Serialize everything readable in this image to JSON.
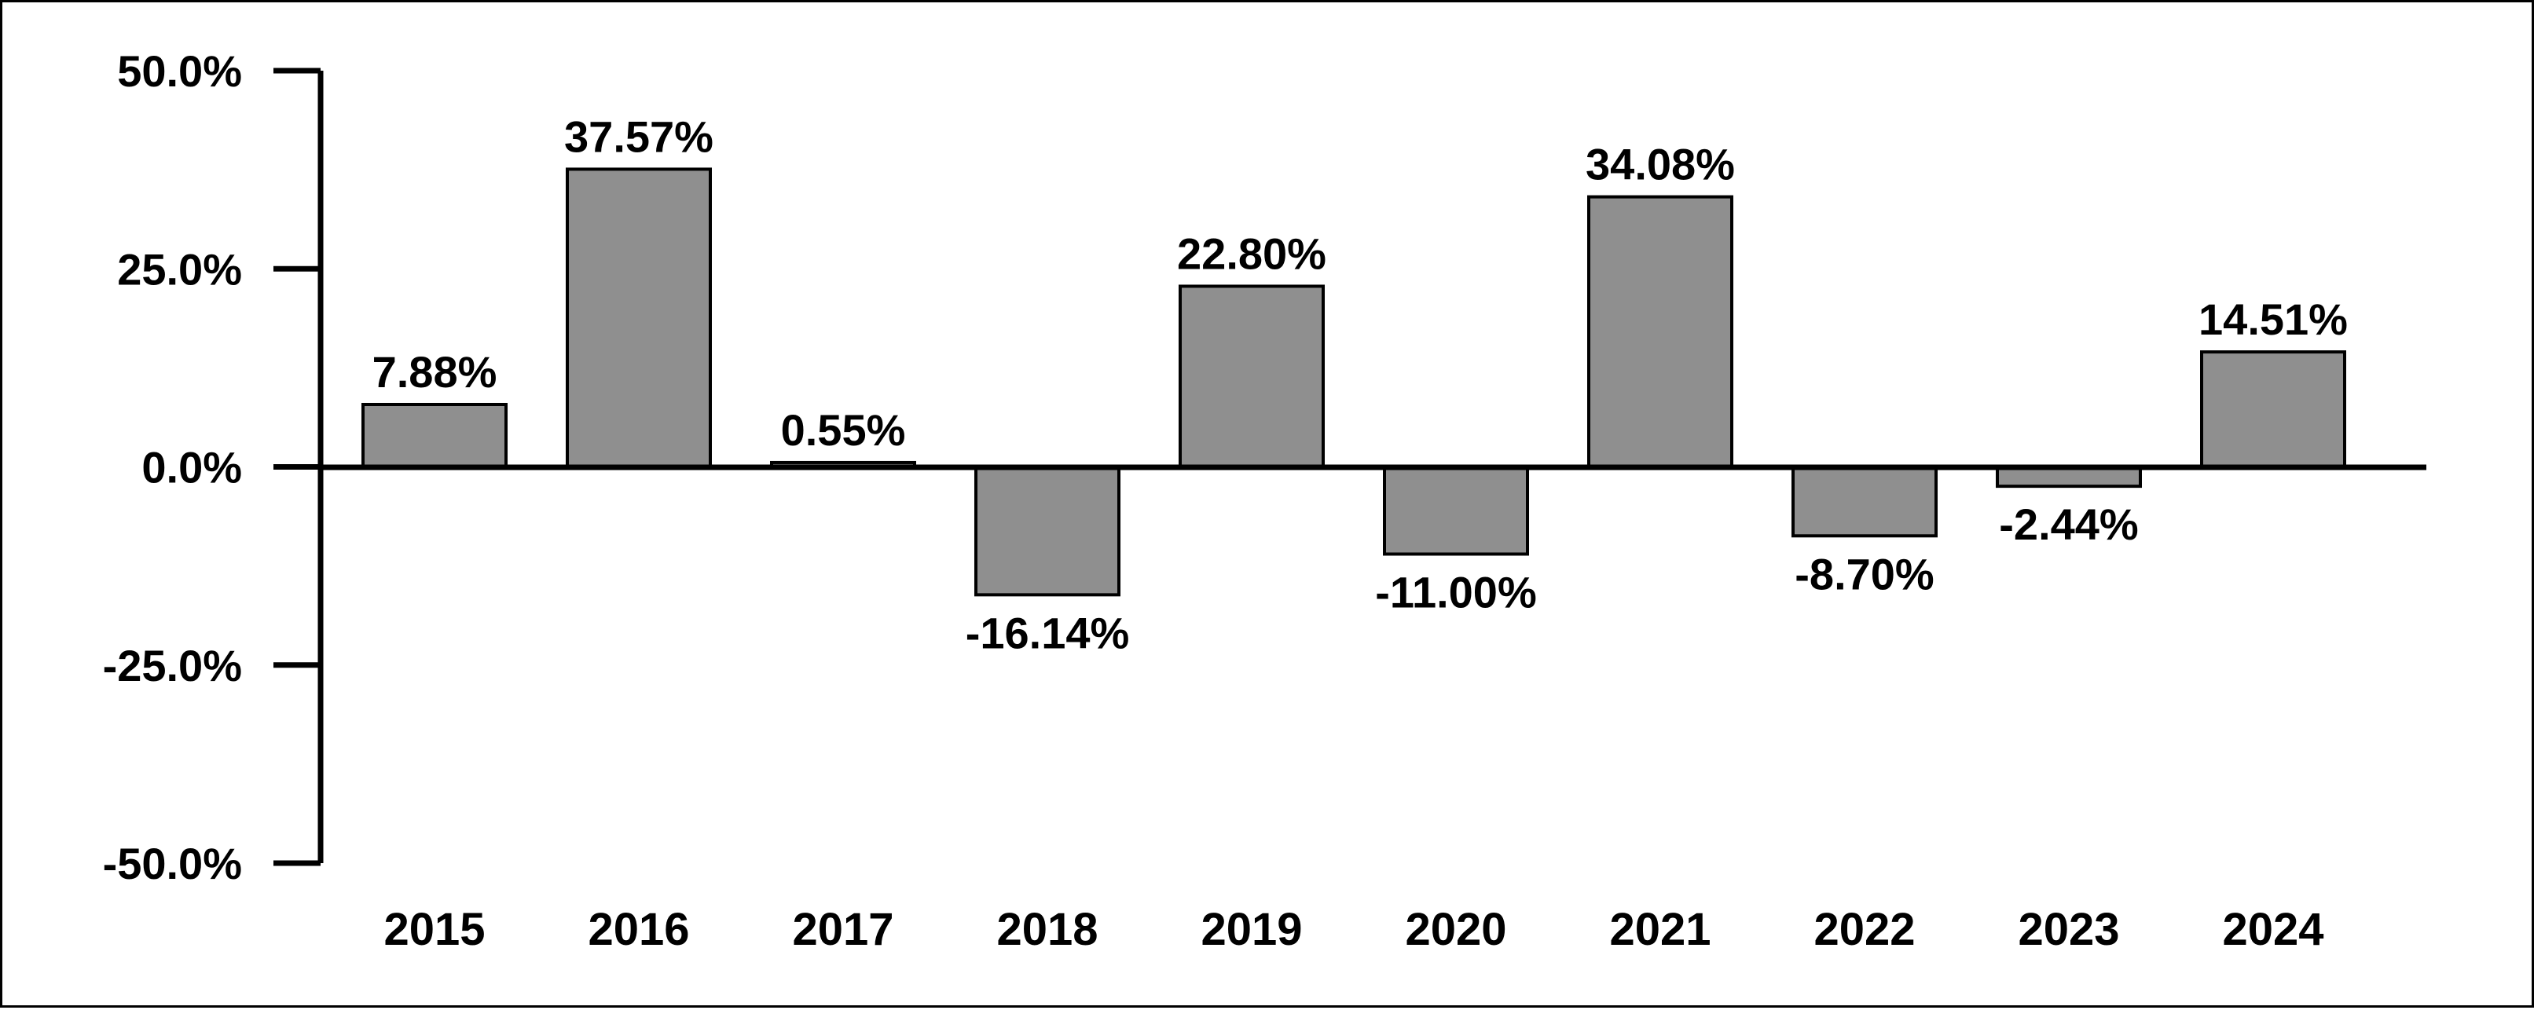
{
  "chart_data": {
    "type": "bar",
    "title": "",
    "xlabel": "",
    "ylabel": "",
    "categories": [
      "2015",
      "2016",
      "2017",
      "2018",
      "2019",
      "2020",
      "2021",
      "2022",
      "2023",
      "2024"
    ],
    "values": [
      7.88,
      37.57,
      0.55,
      -16.14,
      22.8,
      -11.0,
      34.08,
      -8.7,
      -2.44,
      14.51
    ],
    "data_labels": [
      "7.88%",
      "37.57%",
      "0.55%",
      "-16.14%",
      "22.80%",
      "-11.00%",
      "34.08%",
      "-8.70%",
      "-2.44%",
      "14.51%"
    ],
    "ylim": [
      -50,
      50
    ],
    "yticks": [
      50,
      25,
      0,
      -25,
      -50
    ],
    "ytick_labels": [
      "50.0%",
      "25.0%",
      "0.0%",
      "-25.0%",
      "-50.0%"
    ],
    "grid": false,
    "legend": "none",
    "bar_color": "#8f8f8f",
    "bar_edge_color": "#000000"
  }
}
